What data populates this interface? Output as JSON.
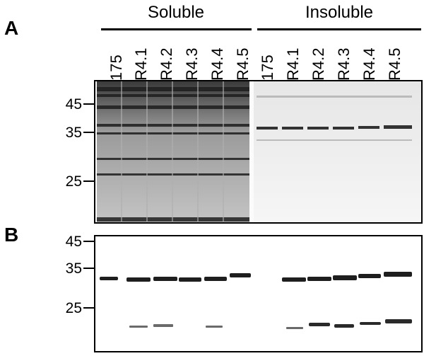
{
  "panels": [
    {
      "letter": "A"
    },
    {
      "letter": "B"
    }
  ],
  "groups": [
    {
      "label": "Soluble"
    },
    {
      "label": "Insoluble"
    }
  ],
  "lanes": [
    "175",
    "R4.1",
    "R4.2",
    "R4.3",
    "R4.4",
    "R4.5",
    "175",
    "R4.1",
    "R4.2",
    "R4.3",
    "R4.4",
    "R4.5"
  ],
  "markers_a": [
    "45",
    "35",
    "25"
  ],
  "markers_b": [
    "45",
    "35",
    "25"
  ],
  "colors": {
    "gel_background": "#ffffff",
    "band": "#1a1a1a",
    "soluble_smear": "#8a8a8a"
  }
}
